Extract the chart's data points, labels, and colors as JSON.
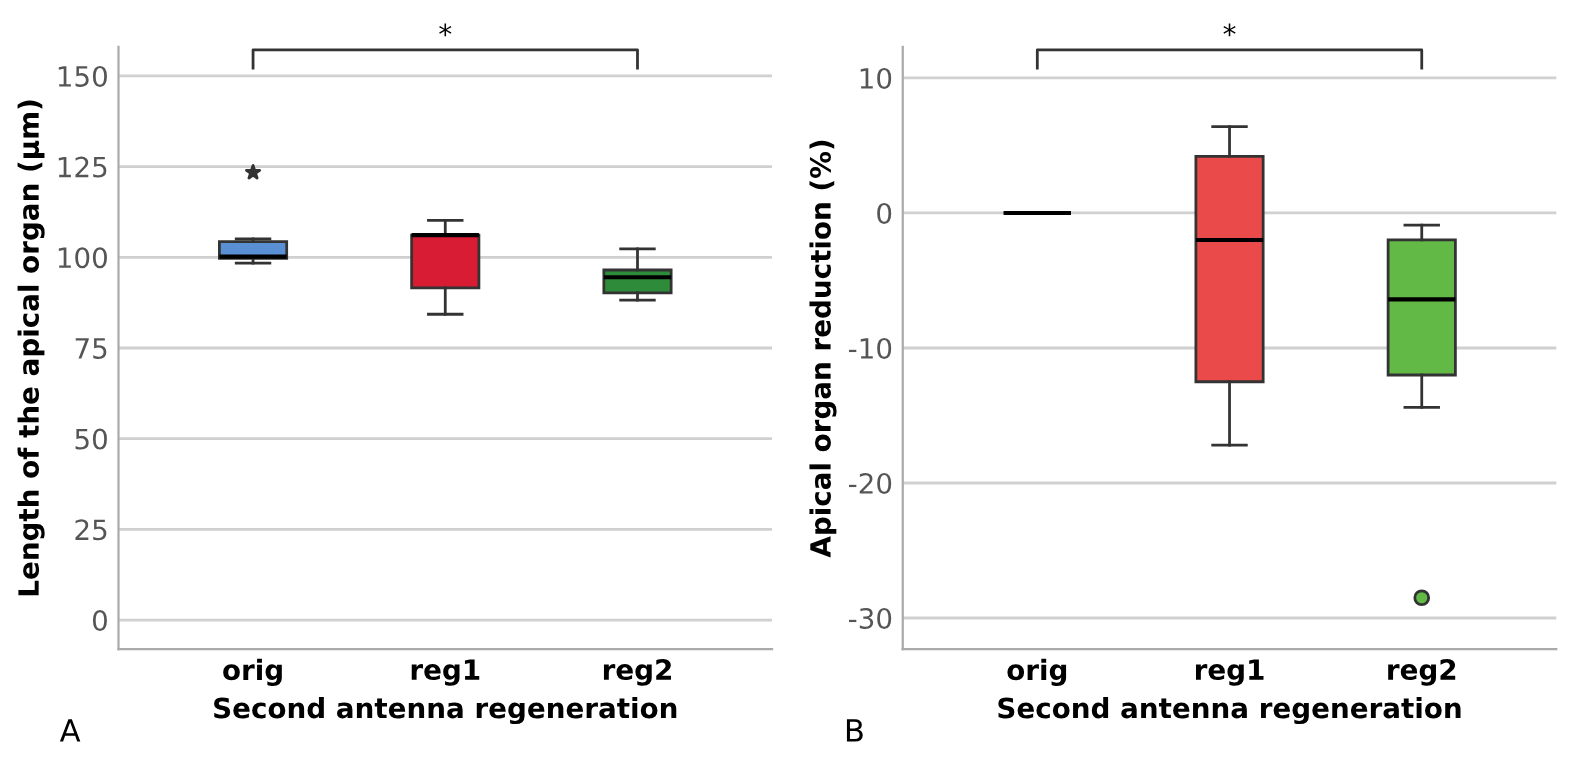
{
  "chart_data": [
    {
      "type": "box",
      "ylabel": "Length of the apical organ (µm)",
      "xlabel": "Second antenna regeneration",
      "categories": [
        "orig",
        "reg1",
        "reg2"
      ],
      "colors": [
        "#5b8fd4",
        "#d81c34",
        "#2e8b3a"
      ],
      "boxes": [
        {
          "low": 98.4,
          "q1": 99.7,
          "median": 100.2,
          "q3": 104.3,
          "high": 105.1,
          "outliers": [
            123.4
          ]
        },
        {
          "low": 84.3,
          "q1": 91.6,
          "median": 106.1,
          "q3": 106.1,
          "high": 110.2
        },
        {
          "low": 88.2,
          "q1": 90.2,
          "median": 94.5,
          "q3": 96.5,
          "high": 102.3
        }
      ],
      "ylim": [
        -8,
        158
      ],
      "yticks": [
        0,
        25,
        50,
        75,
        100,
        125,
        150
      ],
      "grid": "y",
      "marker": "star",
      "annotations": [
        "*",
        "A"
      ]
    },
    {
      "type": "box",
      "ylabel": "Apical organ reduction (%)",
      "xlabel": "Second antenna regeneration",
      "categories": [
        "orig",
        "reg1",
        "reg2"
      ],
      "colors": [
        "#333333",
        "#ea4a4a",
        "#62b946"
      ],
      "boxes": [
        {
          "low": 0,
          "q1": 0,
          "median": 0,
          "q3": 0,
          "high": 0
        },
        {
          "low": -17.2,
          "q1": -12.5,
          "median": -2.0,
          "q3": 4.2,
          "high": 6.4
        },
        {
          "low": -14.4,
          "q1": -12.0,
          "median": -6.4,
          "q3": -2.0,
          "high": -0.9,
          "outliers": [
            -28.5
          ]
        }
      ],
      "ylim": [
        -32.3,
        12.3
      ],
      "yticks": [
        -30,
        -20,
        -10,
        0,
        10
      ],
      "grid": "y",
      "marker": "circle",
      "annotations": [
        "*",
        "B"
      ]
    }
  ]
}
